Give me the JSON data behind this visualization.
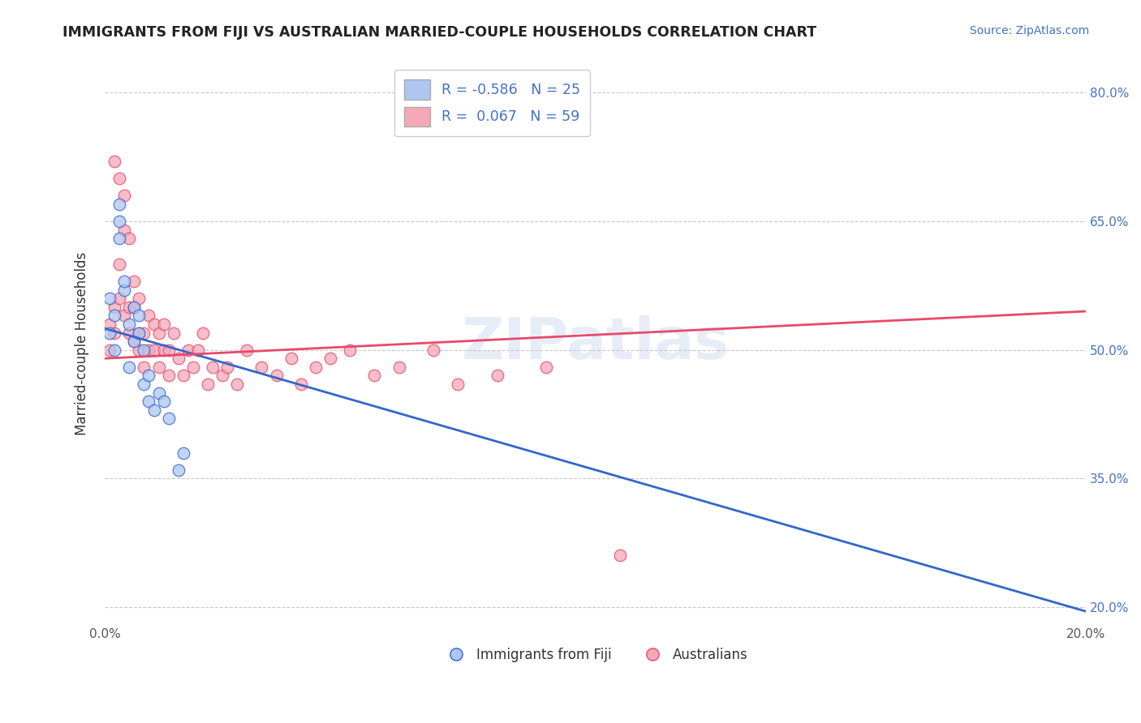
{
  "title": "IMMIGRANTS FROM FIJI VS AUSTRALIAN MARRIED-COUPLE HOUSEHOLDS CORRELATION CHART",
  "source": "Source: ZipAtlas.com",
  "ylabel": "Married-couple Households",
  "legend_labels": [
    "Immigrants from Fiji",
    "Australians"
  ],
  "r_fiji": -0.586,
  "n_fiji": 25,
  "r_aus": 0.067,
  "n_aus": 59,
  "x_min": 0.0,
  "x_max": 0.2,
  "y_min": 0.18,
  "y_max": 0.835,
  "fiji_scatter_color": "#aec6f0",
  "aus_scatter_color": "#f5a8b8",
  "fiji_line_color": "#3366cc",
  "aus_line_color": "#e8496a",
  "fiji_points_x": [
    0.001,
    0.001,
    0.002,
    0.002,
    0.003,
    0.003,
    0.003,
    0.004,
    0.004,
    0.005,
    0.005,
    0.006,
    0.006,
    0.007,
    0.007,
    0.008,
    0.008,
    0.009,
    0.009,
    0.01,
    0.011,
    0.012,
    0.013,
    0.015,
    0.016
  ],
  "fiji_points_y": [
    0.52,
    0.56,
    0.5,
    0.54,
    0.63,
    0.65,
    0.67,
    0.57,
    0.58,
    0.48,
    0.53,
    0.51,
    0.55,
    0.52,
    0.54,
    0.46,
    0.5,
    0.44,
    0.47,
    0.43,
    0.45,
    0.44,
    0.42,
    0.36,
    0.38
  ],
  "aus_points_x": [
    0.001,
    0.001,
    0.002,
    0.002,
    0.002,
    0.003,
    0.003,
    0.003,
    0.004,
    0.004,
    0.004,
    0.005,
    0.005,
    0.005,
    0.006,
    0.006,
    0.006,
    0.007,
    0.007,
    0.007,
    0.008,
    0.008,
    0.009,
    0.009,
    0.01,
    0.01,
    0.011,
    0.011,
    0.012,
    0.012,
    0.013,
    0.013,
    0.014,
    0.015,
    0.016,
    0.017,
    0.018,
    0.019,
    0.02,
    0.021,
    0.022,
    0.024,
    0.025,
    0.027,
    0.029,
    0.032,
    0.035,
    0.038,
    0.04,
    0.043,
    0.046,
    0.05,
    0.055,
    0.06,
    0.067,
    0.072,
    0.08,
    0.09,
    0.105
  ],
  "aus_points_y": [
    0.5,
    0.53,
    0.52,
    0.55,
    0.72,
    0.56,
    0.6,
    0.7,
    0.54,
    0.64,
    0.68,
    0.52,
    0.55,
    0.63,
    0.51,
    0.55,
    0.58,
    0.5,
    0.52,
    0.56,
    0.48,
    0.52,
    0.5,
    0.54,
    0.5,
    0.53,
    0.48,
    0.52,
    0.5,
    0.53,
    0.47,
    0.5,
    0.52,
    0.49,
    0.47,
    0.5,
    0.48,
    0.5,
    0.52,
    0.46,
    0.48,
    0.47,
    0.48,
    0.46,
    0.5,
    0.48,
    0.47,
    0.49,
    0.46,
    0.48,
    0.49,
    0.5,
    0.47,
    0.48,
    0.5,
    0.46,
    0.47,
    0.48,
    0.26
  ],
  "watermark_text": "ZIPatlas",
  "background_color": "#ffffff",
  "grid_color": "#c8c8c8",
  "fiji_line_y0": 0.525,
  "fiji_line_y1": 0.195,
  "aus_line_y0": 0.49,
  "aus_line_y1": 0.545
}
